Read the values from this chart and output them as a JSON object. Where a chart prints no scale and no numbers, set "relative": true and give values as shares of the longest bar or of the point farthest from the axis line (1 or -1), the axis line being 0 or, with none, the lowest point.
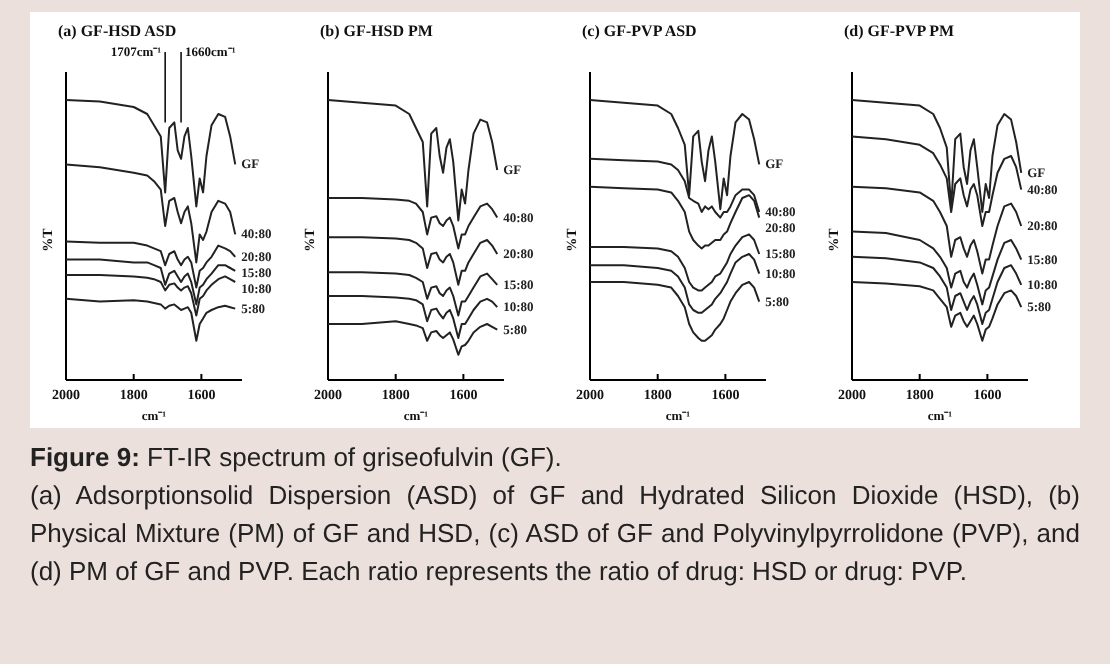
{
  "chart_data": [
    {
      "type": "line",
      "title": "(a) GF-HSD ASD",
      "xlabel": "cm⁻¹",
      "ylabel": "%T",
      "relative": true,
      "xlim": [
        2000,
        1480
      ],
      "xticks": [
        2000,
        1800,
        1600
      ],
      "tick_labels": "x",
      "x": [
        2000,
        1900,
        1800,
        1760,
        1740,
        1720,
        1707,
        1695,
        1680,
        1670,
        1660,
        1650,
        1640,
        1630,
        1615,
        1605,
        1595,
        1585,
        1570,
        1550,
        1530,
        1515,
        1500
      ],
      "annotations": [
        {
          "text": "1707cm⁻¹",
          "x": 1707,
          "y": 0.92
        },
        {
          "text": "1660cm⁻¹",
          "x": 1660,
          "y": 0.92
        },
        "Figure 9:",
        "FT-IR spectrum of griseofulvin (GF).",
        "(a) Adsorptionsolid Dispersion (ASD) of GF and Hydrated Silicon Dioxide (HSD), (b) Physical Mixture (PM) of GF and HSD, (c) ASD of GF and Polyvinylpyrrolidone (PVP), and (d) PM of GF and PVP. Each ratio represents the ratio of drug: HSD or drug: PVP."
      ],
      "series": [
        {
          "name": "GF",
          "color": "#222222",
          "values": [
            1.0,
            0.995,
            0.975,
            0.95,
            0.91,
            0.87,
            0.67,
            0.9,
            0.92,
            0.82,
            0.79,
            0.87,
            0.9,
            0.8,
            0.62,
            0.72,
            0.67,
            0.8,
            0.91,
            0.95,
            0.94,
            0.87,
            0.77
          ]
        },
        {
          "name": "40:80",
          "color": "#222222",
          "values": [
            0.77,
            0.76,
            0.74,
            0.73,
            0.71,
            0.68,
            0.55,
            0.64,
            0.65,
            0.6,
            0.56,
            0.6,
            0.62,
            0.56,
            0.42,
            0.52,
            0.5,
            0.53,
            0.6,
            0.64,
            0.63,
            0.6,
            0.52
          ]
        },
        {
          "name": "20:80",
          "color": "#222222",
          "values": [
            0.495,
            0.49,
            0.49,
            0.48,
            0.47,
            0.46,
            0.41,
            0.45,
            0.46,
            0.43,
            0.41,
            0.43,
            0.44,
            0.42,
            0.33,
            0.39,
            0.4,
            0.42,
            0.44,
            0.48,
            0.47,
            0.46,
            0.44
          ]
        },
        {
          "name": "15:80",
          "color": "#222222",
          "values": [
            0.43,
            0.43,
            0.42,
            0.42,
            0.41,
            0.4,
            0.34,
            0.38,
            0.39,
            0.37,
            0.35,
            0.37,
            0.38,
            0.35,
            0.27,
            0.33,
            0.34,
            0.36,
            0.38,
            0.41,
            0.41,
            0.4,
            0.39
          ]
        },
        {
          "name": "10:80",
          "color": "#222222",
          "values": [
            0.375,
            0.375,
            0.37,
            0.365,
            0.36,
            0.35,
            0.32,
            0.34,
            0.345,
            0.33,
            0.32,
            0.33,
            0.335,
            0.31,
            0.23,
            0.29,
            0.3,
            0.32,
            0.34,
            0.36,
            0.37,
            0.36,
            0.35
          ]
        },
        {
          "name": "5:80",
          "color": "#222222",
          "values": [
            0.29,
            0.28,
            0.285,
            0.28,
            0.275,
            0.27,
            0.255,
            0.265,
            0.27,
            0.26,
            0.25,
            0.255,
            0.26,
            0.24,
            0.14,
            0.2,
            0.22,
            0.24,
            0.25,
            0.26,
            0.265,
            0.26,
            0.255
          ]
        }
      ]
    },
    {
      "type": "line",
      "title": "(b) GF-HSD PM",
      "xlabel": "cm⁻¹",
      "ylabel": "%T",
      "relative": true,
      "xlim": [
        2000,
        1480
      ],
      "xticks": [
        2000,
        1800,
        1600
      ],
      "tick_labels": "x",
      "x": [
        2000,
        1900,
        1800,
        1760,
        1740,
        1720,
        1707,
        1695,
        1680,
        1670,
        1660,
        1650,
        1640,
        1630,
        1615,
        1605,
        1595,
        1585,
        1570,
        1550,
        1530,
        1515,
        1500
      ],
      "series": [
        {
          "name": "GF",
          "color": "#222222",
          "values": [
            1.0,
            0.99,
            0.98,
            0.95,
            0.9,
            0.85,
            0.62,
            0.88,
            0.9,
            0.8,
            0.74,
            0.83,
            0.86,
            0.78,
            0.57,
            0.68,
            0.63,
            0.75,
            0.88,
            0.93,
            0.92,
            0.85,
            0.75
          ]
        },
        {
          "name": "40:80",
          "color": "#222222",
          "values": [
            0.65,
            0.65,
            0.645,
            0.64,
            0.63,
            0.6,
            0.52,
            0.58,
            0.585,
            0.56,
            0.55,
            0.57,
            0.58,
            0.55,
            0.47,
            0.52,
            0.52,
            0.55,
            0.58,
            0.62,
            0.63,
            0.61,
            0.58
          ]
        },
        {
          "name": "20:80",
          "color": "#222222",
          "values": [
            0.51,
            0.51,
            0.505,
            0.5,
            0.49,
            0.47,
            0.4,
            0.45,
            0.455,
            0.43,
            0.42,
            0.44,
            0.45,
            0.42,
            0.34,
            0.39,
            0.39,
            0.42,
            0.45,
            0.49,
            0.5,
            0.48,
            0.45
          ]
        },
        {
          "name": "15:80",
          "color": "#222222",
          "values": [
            0.385,
            0.385,
            0.38,
            0.375,
            0.365,
            0.35,
            0.29,
            0.33,
            0.335,
            0.31,
            0.3,
            0.32,
            0.33,
            0.3,
            0.23,
            0.28,
            0.28,
            0.3,
            0.33,
            0.37,
            0.38,
            0.36,
            0.34
          ]
        },
        {
          "name": "10:80",
          "color": "#222222",
          "values": [
            0.3,
            0.3,
            0.295,
            0.29,
            0.285,
            0.27,
            0.21,
            0.25,
            0.255,
            0.235,
            0.22,
            0.24,
            0.25,
            0.22,
            0.15,
            0.2,
            0.2,
            0.22,
            0.25,
            0.28,
            0.29,
            0.28,
            0.26
          ]
        },
        {
          "name": "5:80",
          "color": "#222222",
          "values": [
            0.2,
            0.2,
            0.21,
            0.2,
            0.195,
            0.185,
            0.14,
            0.17,
            0.175,
            0.16,
            0.15,
            0.16,
            0.17,
            0.145,
            0.09,
            0.12,
            0.125,
            0.14,
            0.17,
            0.19,
            0.2,
            0.19,
            0.18
          ]
        }
      ]
    },
    {
      "type": "line",
      "title": "(c) GF-PVP ASD",
      "xlabel": "cm⁻¹",
      "ylabel": "%T",
      "relative": true,
      "xlim": [
        2000,
        1480
      ],
      "xticks": [
        2000,
        1800,
        1600
      ],
      "tick_labels": "x",
      "x": [
        2000,
        1900,
        1800,
        1760,
        1740,
        1720,
        1707,
        1695,
        1680,
        1670,
        1660,
        1650,
        1640,
        1630,
        1615,
        1605,
        1595,
        1585,
        1570,
        1550,
        1530,
        1515,
        1500
      ],
      "series": [
        {
          "name": "GF",
          "color": "#222222",
          "values": [
            1.0,
            0.99,
            0.98,
            0.95,
            0.9,
            0.84,
            0.66,
            0.87,
            0.89,
            0.78,
            0.71,
            0.82,
            0.87,
            0.78,
            0.61,
            0.72,
            0.66,
            0.8,
            0.92,
            0.95,
            0.93,
            0.86,
            0.77
          ]
        },
        {
          "name": "40:80",
          "color": "#222222",
          "values": [
            0.79,
            0.785,
            0.78,
            0.77,
            0.75,
            0.71,
            0.65,
            0.64,
            0.63,
            0.6,
            0.62,
            0.61,
            0.62,
            0.6,
            0.58,
            0.6,
            0.6,
            0.62,
            0.66,
            0.68,
            0.68,
            0.66,
            0.6
          ]
        },
        {
          "name": "20:80",
          "color": "#222222",
          "values": [
            0.69,
            0.685,
            0.68,
            0.67,
            0.64,
            0.6,
            0.53,
            0.5,
            0.48,
            0.47,
            0.48,
            0.48,
            0.49,
            0.5,
            0.5,
            0.52,
            0.53,
            0.56,
            0.6,
            0.65,
            0.66,
            0.64,
            0.58
          ]
        },
        {
          "name": "15:80",
          "color": "#222222",
          "values": [
            0.475,
            0.475,
            0.47,
            0.46,
            0.44,
            0.4,
            0.35,
            0.33,
            0.32,
            0.32,
            0.33,
            0.34,
            0.35,
            0.37,
            0.38,
            0.4,
            0.42,
            0.45,
            0.48,
            0.51,
            0.52,
            0.5,
            0.45
          ]
        },
        {
          "name": "10:80",
          "color": "#222222",
          "values": [
            0.41,
            0.41,
            0.4,
            0.39,
            0.37,
            0.33,
            0.27,
            0.25,
            0.24,
            0.24,
            0.25,
            0.26,
            0.27,
            0.29,
            0.31,
            0.33,
            0.35,
            0.38,
            0.42,
            0.44,
            0.45,
            0.43,
            0.38
          ]
        },
        {
          "name": "5:80",
          "color": "#222222",
          "values": [
            0.35,
            0.35,
            0.34,
            0.33,
            0.3,
            0.26,
            0.2,
            0.17,
            0.15,
            0.14,
            0.14,
            0.15,
            0.16,
            0.18,
            0.2,
            0.22,
            0.25,
            0.28,
            0.31,
            0.34,
            0.35,
            0.33,
            0.28
          ]
        }
      ]
    },
    {
      "type": "line",
      "title": "(d) GF-PVP PM",
      "xlabel": "cm⁻¹",
      "ylabel": "%T",
      "relative": true,
      "xlim": [
        2000,
        1480
      ],
      "xticks": [
        2000,
        1800,
        1600
      ],
      "tick_labels": "x",
      "x": [
        2000,
        1900,
        1800,
        1760,
        1740,
        1720,
        1707,
        1695,
        1680,
        1670,
        1660,
        1650,
        1640,
        1630,
        1615,
        1605,
        1595,
        1585,
        1570,
        1550,
        1530,
        1515,
        1500
      ],
      "series": [
        {
          "name": "GF",
          "color": "#222222",
          "values": [
            1.0,
            0.99,
            0.98,
            0.95,
            0.9,
            0.83,
            0.62,
            0.86,
            0.88,
            0.76,
            0.7,
            0.82,
            0.86,
            0.76,
            0.6,
            0.7,
            0.65,
            0.8,
            0.91,
            0.95,
            0.93,
            0.85,
            0.74
          ]
        },
        {
          "name": "40:80",
          "color": "#222222",
          "values": [
            0.87,
            0.86,
            0.84,
            0.81,
            0.77,
            0.72,
            0.6,
            0.7,
            0.72,
            0.66,
            0.62,
            0.68,
            0.7,
            0.66,
            0.55,
            0.6,
            0.6,
            0.66,
            0.74,
            0.79,
            0.8,
            0.76,
            0.68
          ]
        },
        {
          "name": "20:80",
          "color": "#222222",
          "values": [
            0.69,
            0.685,
            0.67,
            0.64,
            0.6,
            0.55,
            0.44,
            0.5,
            0.51,
            0.47,
            0.44,
            0.48,
            0.5,
            0.46,
            0.38,
            0.43,
            0.43,
            0.48,
            0.55,
            0.62,
            0.63,
            0.6,
            0.55
          ]
        },
        {
          "name": "15:80",
          "color": "#222222",
          "values": [
            0.53,
            0.525,
            0.5,
            0.47,
            0.44,
            0.4,
            0.33,
            0.38,
            0.39,
            0.35,
            0.33,
            0.36,
            0.38,
            0.34,
            0.27,
            0.32,
            0.33,
            0.37,
            0.43,
            0.49,
            0.5,
            0.47,
            0.43
          ]
        },
        {
          "name": "10:80",
          "color": "#222222",
          "values": [
            0.44,
            0.435,
            0.42,
            0.4,
            0.37,
            0.33,
            0.25,
            0.3,
            0.31,
            0.28,
            0.25,
            0.28,
            0.3,
            0.27,
            0.2,
            0.24,
            0.25,
            0.29,
            0.35,
            0.4,
            0.41,
            0.38,
            0.34
          ]
        },
        {
          "name": "5:80",
          "color": "#222222",
          "values": [
            0.35,
            0.345,
            0.335,
            0.32,
            0.29,
            0.26,
            0.19,
            0.23,
            0.24,
            0.21,
            0.19,
            0.21,
            0.23,
            0.2,
            0.14,
            0.18,
            0.19,
            0.22,
            0.27,
            0.31,
            0.32,
            0.3,
            0.26
          ]
        }
      ]
    }
  ]
}
